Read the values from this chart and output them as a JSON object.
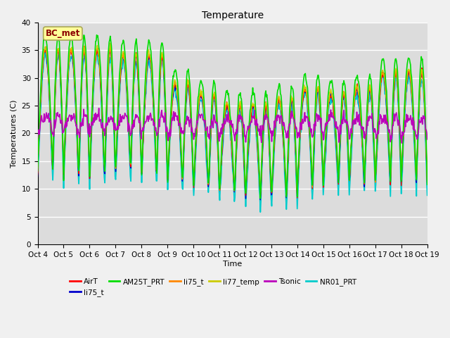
{
  "title": "Temperature",
  "ylabel": "Temperatures (C)",
  "xlabel": "Time",
  "ylim": [
    0,
    40
  ],
  "xlim": [
    0,
    15
  ],
  "bg_color": "#dcdcdc",
  "fig_bg_color": "#f0f0f0",
  "annotation_text": "BC_met",
  "annotation_color": "#8b0000",
  "annotation_bg": "#ffff99",
  "annotation_edge": "#aaa855",
  "series": [
    {
      "name": "AirT",
      "color": "#ff0000",
      "lw": 1.0,
      "zorder": 4
    },
    {
      "name": "li75_t",
      "color": "#0000cc",
      "lw": 1.0,
      "zorder": 3
    },
    {
      "name": "AM25T_PRT",
      "color": "#00dd00",
      "lw": 1.2,
      "zorder": 5
    },
    {
      "name": "li75_t",
      "color": "#ff8800",
      "lw": 1.0,
      "zorder": 4
    },
    {
      "name": "li77_temp",
      "color": "#cccc00",
      "lw": 1.0,
      "zorder": 4
    },
    {
      "name": "Tsonic",
      "color": "#bb00bb",
      "lw": 1.2,
      "zorder": 6
    },
    {
      "name": "NR01_PRT",
      "color": "#00cccc",
      "lw": 1.3,
      "zorder": 2
    }
  ],
  "xtick_labels": [
    "Oct 4",
    "Oct 5",
    "Oct 6",
    "Oct 7",
    "Oct 8",
    "Oct 9",
    "Oct 10",
    "Oct 11",
    "Oct 12",
    "Oct 13",
    "Oct 14",
    "Oct 15",
    "Oct 16",
    "Oct 17",
    "Oct 18",
    "Oct 19"
  ],
  "ytick_vals": [
    0,
    5,
    10,
    15,
    20,
    25,
    30,
    35,
    40
  ],
  "grid_color": "#ffffff",
  "title_fontsize": 10,
  "label_fontsize": 8,
  "tick_fontsize": 7.5,
  "legend_fontsize": 7.5
}
